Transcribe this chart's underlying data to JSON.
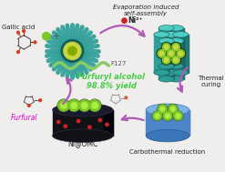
{
  "bg_color": "#f0eeec",
  "title_top": "Evaporation induced\nself-assembly",
  "label_top_right": "Thermal\ncuring",
  "label_bottom": "Carbothermal reduction",
  "label_ni_omc": "Ni@OMC",
  "label_furfural": "Furfural",
  "label_gallic": "Gallic acid",
  "label_f127": "F127",
  "label_ni2": "Ni²⁺",
  "label_product": "Furfuryl alcohol\n98.8% yield",
  "arrow_color": "#b05ab8",
  "teal_body": "#2e9e98",
  "teal_dark": "#1a5c58",
  "teal_rim": "#0d3d3a",
  "teal_light": "#4ecdc4",
  "yellow_green": "#c8d840",
  "lime_green": "#7dc528",
  "lime_light": "#aaee44",
  "blue_prism": "#4a86c8",
  "blue_light": "#7ab4e8",
  "dark_omc": "#111118",
  "dark_omc2": "#1a1a30",
  "red_dot": "#cc2222",
  "furfural_color": "#dd00cc",
  "product_color": "#44cc44",
  "text_dark": "#222222",
  "text_mid": "#555555"
}
